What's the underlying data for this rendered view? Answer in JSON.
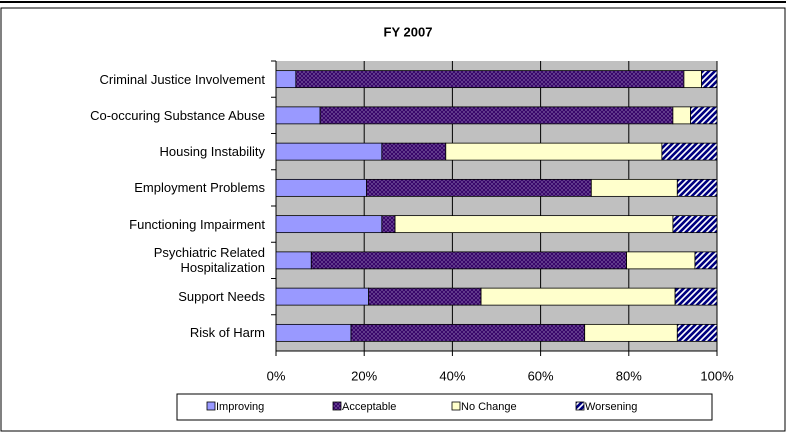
{
  "chart_data": {
    "type": "stacked-bar-horizontal",
    "title": "FY 2007",
    "categories": [
      "Criminal Justice Involvement",
      "Co-occuring Substance Abuse",
      "Housing Instability",
      "Employment Problems",
      "Functioning Impairment",
      "Psychiatric  Related\nHospitalization",
      "Support Needs",
      "Risk of Harm"
    ],
    "series": [
      {
        "name": "Improving",
        "color": "#9999ff",
        "hatch": "none",
        "values": [
          4.5,
          10,
          24,
          20.5,
          24,
          8,
          21,
          17
        ]
      },
      {
        "name": "Acceptable",
        "color": "#330066",
        "hatch": "cross",
        "values": [
          88,
          80,
          14.5,
          51,
          3,
          71.5,
          25.5,
          53
        ]
      },
      {
        "name": "No Change",
        "color": "#ffffcc",
        "hatch": "none",
        "values": [
          4,
          4,
          49,
          19.5,
          63,
          15.5,
          44,
          21
        ]
      },
      {
        "name": "Worsening",
        "color": "#000080",
        "hatch": "diagonal",
        "values": [
          3.5,
          6,
          12.5,
          9,
          10,
          5,
          9.5,
          9
        ]
      }
    ],
    "xlim": [
      0,
      100
    ],
    "xticks": [
      {
        "value": 0,
        "label": "0%"
      },
      {
        "value": 20,
        "label": "20%"
      },
      {
        "value": 40,
        "label": "40%"
      },
      {
        "value": 60,
        "label": "60%"
      },
      {
        "value": 80,
        "label": "80%"
      },
      {
        "value": 100,
        "label": "100%"
      }
    ],
    "grid": true,
    "legend": "bottom"
  }
}
